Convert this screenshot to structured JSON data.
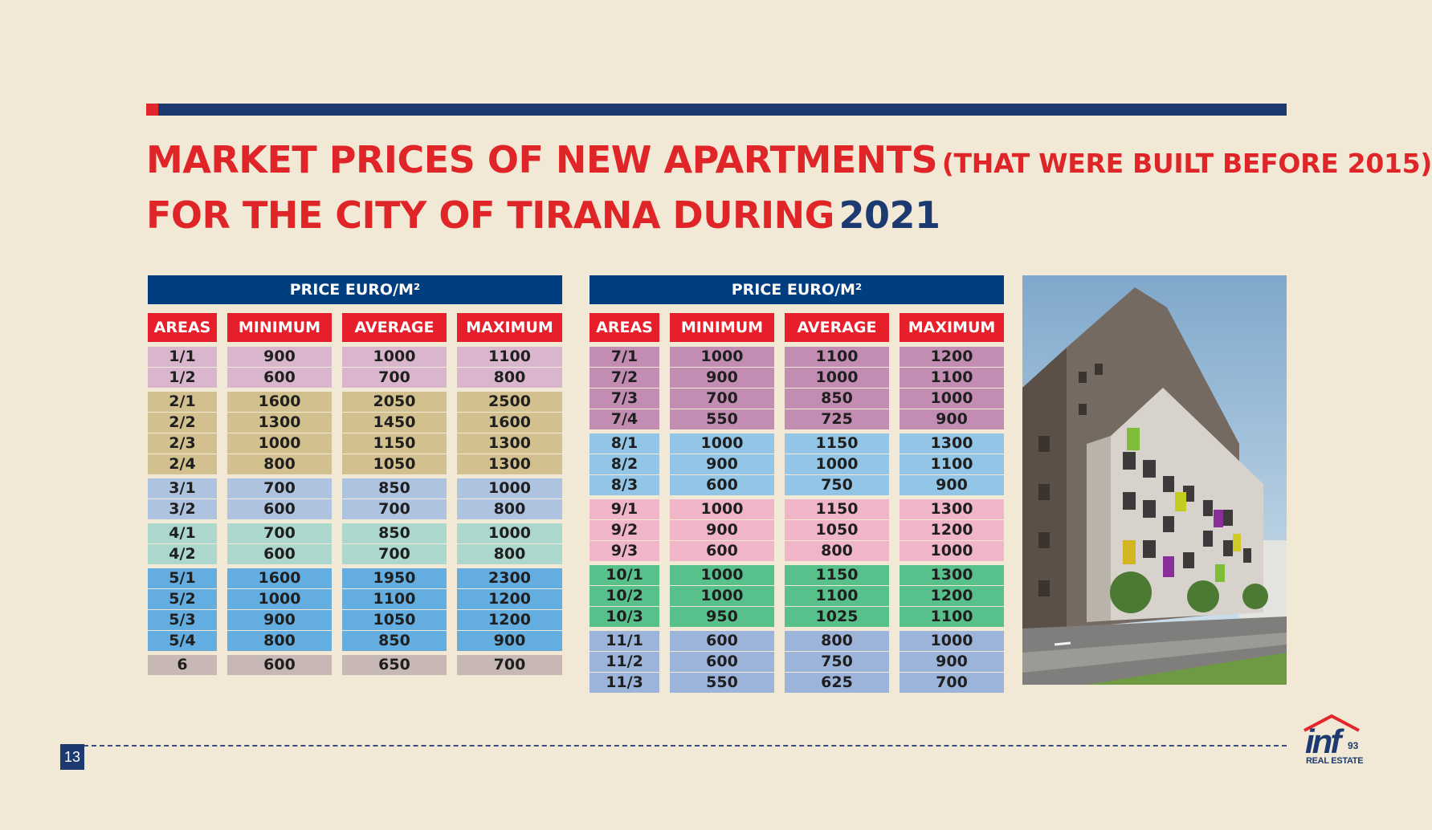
{
  "title": {
    "line1": "MARKET PRICES OF NEW APARTMENTS",
    "line1_sub": "(THAT WERE BUILT BEFORE 2015)",
    "line2": "FOR THE CITY OF TIRANA DURING",
    "year": "2021"
  },
  "table_left": {
    "header": "PRICE EURO/M²",
    "columns": [
      "AREAS",
      "MINIMUM",
      "AVERAGE",
      "MAXIMUM"
    ],
    "rows": [
      {
        "area": "1/1",
        "min": "900",
        "avg": "1000",
        "max": "1100",
        "color": "#d9b6cd"
      },
      {
        "area": "1/2",
        "min": "600",
        "avg": "700",
        "max": "800",
        "color": "#d9b6cd"
      },
      {
        "area": "2/1",
        "min": "1600",
        "avg": "2050",
        "max": "2500",
        "color": "#d2c08e"
      },
      {
        "area": "2/2",
        "min": "1300",
        "avg": "1450",
        "max": "1600",
        "color": "#d2c08e"
      },
      {
        "area": "2/3",
        "min": "1000",
        "avg": "1150",
        "max": "1300",
        "color": "#d2c08e"
      },
      {
        "area": "2/4",
        "min": "800",
        "avg": "1050",
        "max": "1300",
        "color": "#d2c08e"
      },
      {
        "area": "3/1",
        "min": "700",
        "avg": "850",
        "max": "1000",
        "color": "#aec3e0"
      },
      {
        "area": "3/2",
        "min": "600",
        "avg": "700",
        "max": "800",
        "color": "#aec3e0"
      },
      {
        "area": "4/1",
        "min": "700",
        "avg": "850",
        "max": "1000",
        "color": "#abd7cc"
      },
      {
        "area": "4/2",
        "min": "600",
        "avg": "700",
        "max": "800",
        "color": "#abd7cc"
      },
      {
        "area": "5/1",
        "min": "1600",
        "avg": "1950",
        "max": "2300",
        "color": "#64ade0"
      },
      {
        "area": "5/2",
        "min": "1000",
        "avg": "1100",
        "max": "1200",
        "color": "#64ade0"
      },
      {
        "area": "5/3",
        "min": "900",
        "avg": "1050",
        "max": "1200",
        "color": "#64ade0"
      },
      {
        "area": "5/4",
        "min": "800",
        "avg": "850",
        "max": "900",
        "color": "#64ade0"
      },
      {
        "area": "6",
        "min": "600",
        "avg": "650",
        "max": "700",
        "color": "#c8b8b5"
      }
    ]
  },
  "table_right": {
    "header": "PRICE EURO/M²",
    "columns": [
      "AREAS",
      "MINIMUM",
      "AVERAGE",
      "MAXIMUM"
    ],
    "rows": [
      {
        "area": "7/1",
        "min": "1000",
        "avg": "1100",
        "max": "1200",
        "color": "#c38db3"
      },
      {
        "area": "7/2",
        "min": "900",
        "avg": "1000",
        "max": "1100",
        "color": "#c38db3"
      },
      {
        "area": "7/3",
        "min": "700",
        "avg": "850",
        "max": "1000",
        "color": "#c38db3"
      },
      {
        "area": "7/4",
        "min": "550",
        "avg": "725",
        "max": "900",
        "color": "#c38db3"
      },
      {
        "area": "8/1",
        "min": "1000",
        "avg": "1150",
        "max": "1300",
        "color": "#92c5e6"
      },
      {
        "area": "8/2",
        "min": "900",
        "avg": "1000",
        "max": "1100",
        "color": "#92c5e6"
      },
      {
        "area": "8/3",
        "min": "600",
        "avg": "750",
        "max": "900",
        "color": "#92c5e6"
      },
      {
        "area": "9/1",
        "min": "1000",
        "avg": "1150",
        "max": "1300",
        "color": "#f0b5c6"
      },
      {
        "area": "9/2",
        "min": "900",
        "avg": "1050",
        "max": "1200",
        "color": "#f0b5c6"
      },
      {
        "area": "9/3",
        "min": "600",
        "avg": "800",
        "max": "1000",
        "color": "#f0b5c6"
      },
      {
        "area": "10/1",
        "min": "1000",
        "avg": "1150",
        "max": "1300",
        "color": "#58c08b"
      },
      {
        "area": "10/2",
        "min": "1000",
        "avg": "1100",
        "max": "1200",
        "color": "#58c08b"
      },
      {
        "area": "10/3",
        "min": "950",
        "avg": "1025",
        "max": "1100",
        "color": "#58c08b"
      },
      {
        "area": "11/1",
        "min": "600",
        "avg": "800",
        "max": "1000",
        "color": "#9cb3da"
      },
      {
        "area": "11/2",
        "min": "600",
        "avg": "750",
        "max": "900",
        "color": "#9cb3da"
      },
      {
        "area": "11/3",
        "min": "550",
        "avg": "625",
        "max": "700",
        "color": "#9cb3da"
      }
    ]
  },
  "footer": {
    "page_number": "13",
    "logo_text": "inf",
    "logo_number": "93",
    "logo_tagline": "REAL ESTATE"
  },
  "colors": {
    "title_red": "#df2527",
    "navy": "#1d3a70",
    "header_blue": "#003e80",
    "column_red": "#e71f2a",
    "background": "#f1e8d6"
  }
}
